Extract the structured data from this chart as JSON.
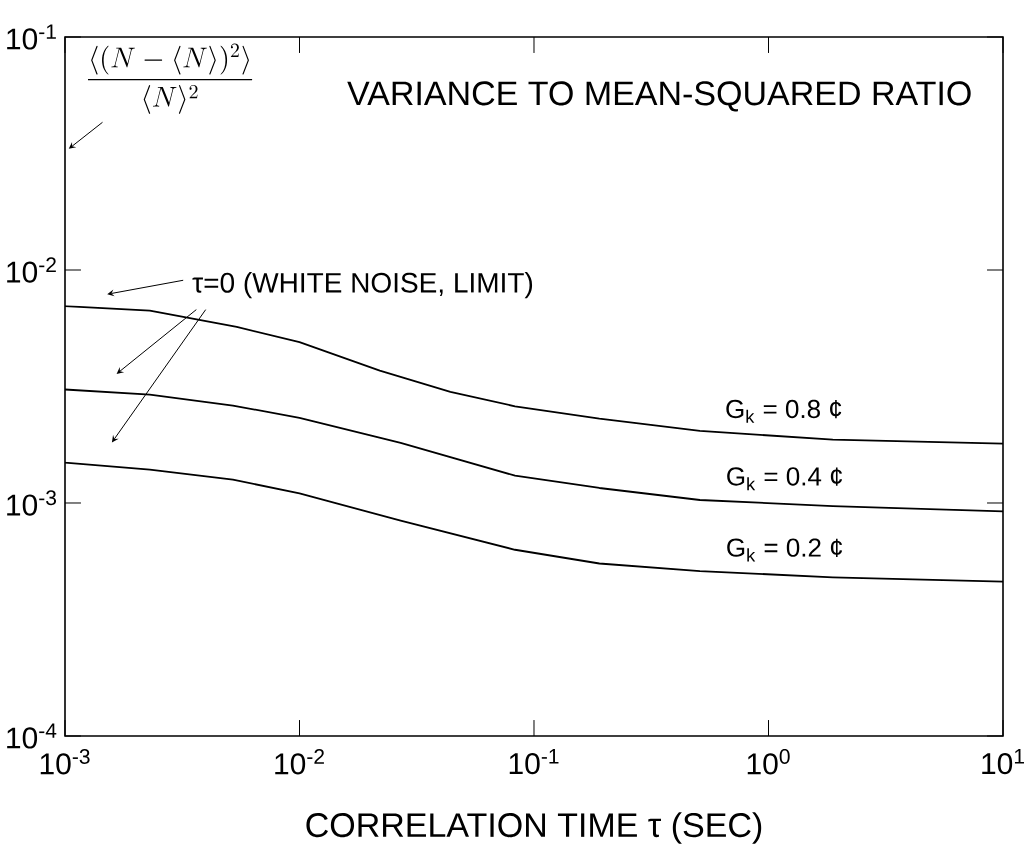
{
  "chart_data": {
    "type": "line",
    "title": "VARIANCE TO MEAN-SQUARED RATIO",
    "xlabel": "CORRELATION TIME τ (SEC)",
    "ylabel": "\\frac{\\langle (N-\\langle N\\rangle)^{2}\\rangle}{\\langle N\\rangle^{2}}",
    "annotations": [
      "τ=0 (WHITE NOISE, LIMIT)"
    ],
    "log": "xy",
    "xlim": [
      0.001,
      10
    ],
    "ylim": [
      0.0001,
      0.1
    ],
    "xticks": [
      {
        "value": 0.001,
        "label": "10$^{-3}$"
      },
      {
        "value": 0.01,
        "label": "10$^{-2}$"
      },
      {
        "value": 0.1,
        "label": "10$^{-1}$"
      },
      {
        "value": 1,
        "label": "10$^{0}$"
      },
      {
        "value": 10,
        "label": "10$^{1}$"
      }
    ],
    "yticks": [
      {
        "value": 0.0001,
        "label": "10$^{-4}$"
      },
      {
        "value": 0.001,
        "label": "10$^{-3}$"
      },
      {
        "value": 0.01,
        "label": "10$^{-2}$"
      },
      {
        "value": 0.1,
        "label": "10$^{-1}$"
      }
    ],
    "series": [
      {
        "name": "G$_{k}$ = 0.8 ¢",
        "color": "#000000",
        "x": [
          0.001,
          0.0023,
          0.0054,
          0.01,
          0.022,
          0.044,
          0.083,
          0.19,
          0.51,
          1.88,
          10
        ],
        "values": [
          0.007,
          0.0067,
          0.0057,
          0.0049,
          0.0037,
          0.003,
          0.0026,
          0.0023,
          0.00204,
          0.00187,
          0.0018
        ]
      },
      {
        "name": "G$_{k}$ = 0.4 ¢",
        "color": "#000000",
        "x": [
          0.001,
          0.0023,
          0.0052,
          0.01,
          0.027,
          0.083,
          0.19,
          0.51,
          1.88,
          10
        ],
        "values": [
          0.00307,
          0.00292,
          0.00262,
          0.00232,
          0.00181,
          0.00131,
          0.00116,
          0.00103,
          0.00097,
          0.00092
        ]
      },
      {
        "name": "G$_{k}$ = 0.2 ¢",
        "color": "#000000",
        "x": [
          0.001,
          0.0023,
          0.0052,
          0.01,
          0.027,
          0.083,
          0.19,
          0.51,
          1.88,
          10
        ],
        "values": [
          0.00149,
          0.00139,
          0.00126,
          0.0011,
          0.00084,
          0.00063,
          0.00055,
          0.00051,
          0.00048,
          0.00046
        ]
      }
    ]
  }
}
